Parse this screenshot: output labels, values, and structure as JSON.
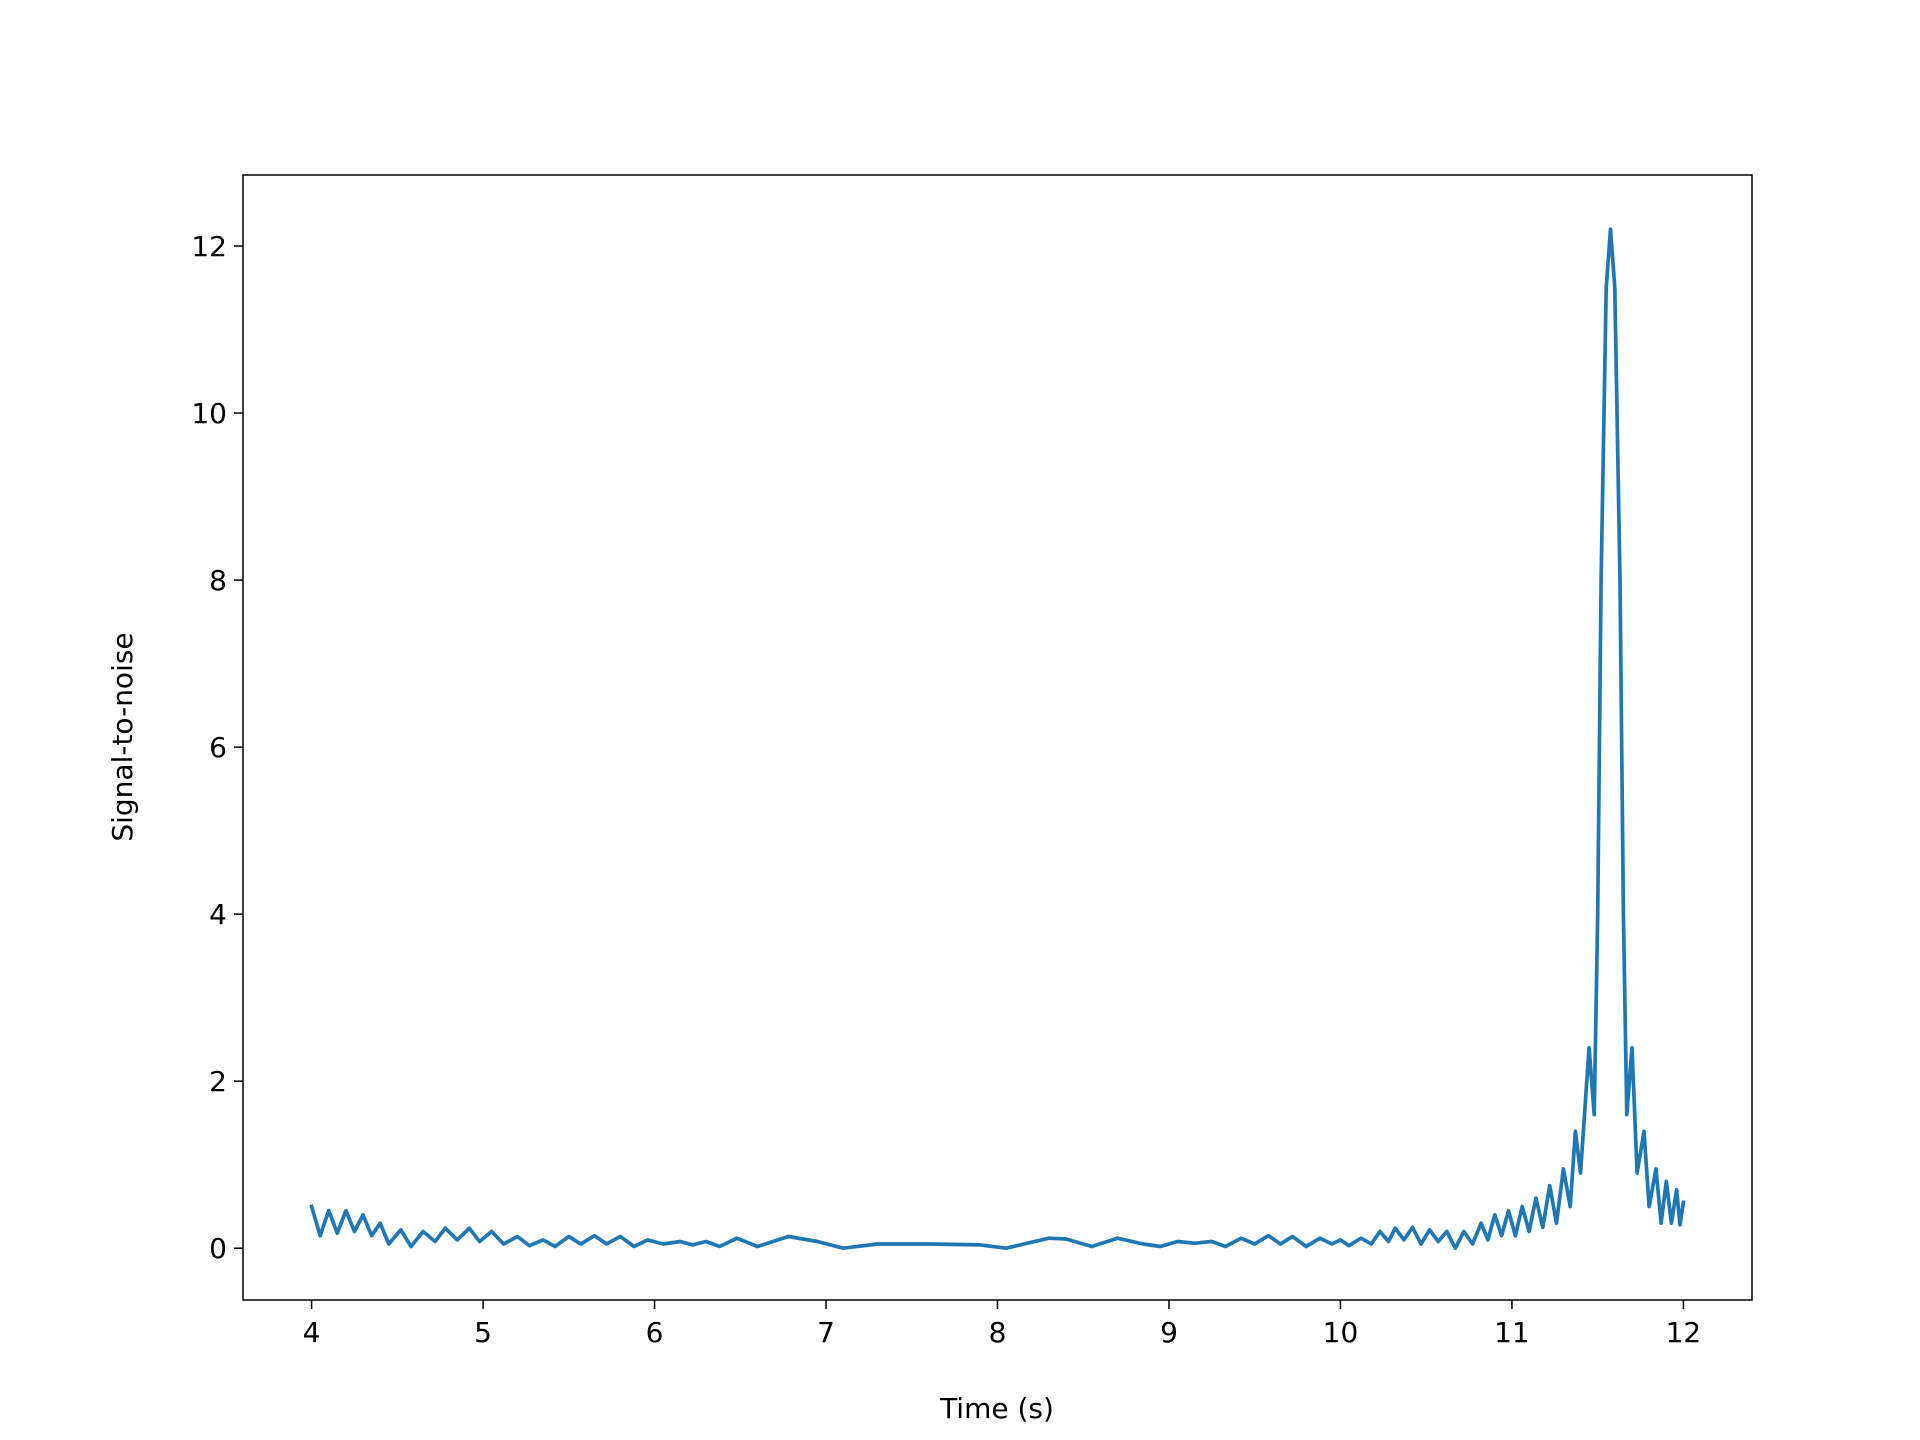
{
  "chart_data": {
    "type": "line",
    "xlabel": "Time (s)",
    "ylabel": "Signal-to-noise",
    "xlim": [
      3.6,
      12.4
    ],
    "xticks": [
      4,
      5,
      6,
      7,
      8,
      9,
      10,
      11,
      12
    ],
    "ylim": [
      -0.62,
      12.85
    ],
    "yticks": [
      0,
      2,
      4,
      6,
      8,
      10,
      12
    ],
    "series": [
      {
        "color": "#1f77b4",
        "x": [
          4.0,
          4.05,
          4.1,
          4.15,
          4.2,
          4.25,
          4.3,
          4.35,
          4.4,
          4.45,
          4.52,
          4.58,
          4.65,
          4.72,
          4.78,
          4.85,
          4.92,
          4.98,
          5.05,
          5.12,
          5.2,
          5.27,
          5.35,
          5.42,
          5.5,
          5.57,
          5.65,
          5.72,
          5.8,
          5.88,
          5.96,
          6.05,
          6.15,
          6.22,
          6.3,
          6.38,
          6.48,
          6.6,
          6.78,
          6.95,
          7.1,
          7.3,
          7.6,
          7.9,
          8.05,
          8.3,
          8.4,
          8.55,
          8.7,
          8.85,
          8.95,
          9.05,
          9.15,
          9.25,
          9.33,
          9.42,
          9.5,
          9.58,
          9.65,
          9.72,
          9.8,
          9.88,
          9.95,
          10.0,
          10.05,
          10.12,
          10.18,
          10.23,
          10.28,
          10.32,
          10.37,
          10.42,
          10.47,
          10.52,
          10.57,
          10.62,
          10.67,
          10.72,
          10.77,
          10.82,
          10.86,
          10.9,
          10.94,
          10.98,
          11.02,
          11.06,
          11.1,
          11.14,
          11.18,
          11.22,
          11.26,
          11.3,
          11.34,
          11.37,
          11.4,
          11.45,
          11.48,
          11.5,
          11.52,
          11.55,
          11.575,
          11.6,
          11.63,
          11.65,
          11.67,
          11.7,
          11.73,
          11.77,
          11.8,
          11.84,
          11.87,
          11.9,
          11.93,
          11.96,
          11.98,
          12.0
        ],
        "values": [
          0.5,
          0.15,
          0.45,
          0.18,
          0.45,
          0.2,
          0.4,
          0.15,
          0.3,
          0.05,
          0.22,
          0.02,
          0.2,
          0.08,
          0.24,
          0.1,
          0.24,
          0.08,
          0.2,
          0.05,
          0.14,
          0.03,
          0.1,
          0.02,
          0.14,
          0.05,
          0.15,
          0.05,
          0.14,
          0.02,
          0.1,
          0.05,
          0.08,
          0.04,
          0.08,
          0.02,
          0.12,
          0.02,
          0.14,
          0.08,
          0.0,
          0.05,
          0.05,
          0.04,
          0.0,
          0.12,
          0.11,
          0.02,
          0.12,
          0.05,
          0.02,
          0.08,
          0.06,
          0.08,
          0.02,
          0.12,
          0.05,
          0.15,
          0.05,
          0.14,
          0.02,
          0.12,
          0.05,
          0.1,
          0.03,
          0.12,
          0.05,
          0.2,
          0.08,
          0.24,
          0.1,
          0.25,
          0.05,
          0.22,
          0.08,
          0.2,
          0.0,
          0.2,
          0.05,
          0.3,
          0.1,
          0.4,
          0.15,
          0.45,
          0.15,
          0.5,
          0.2,
          0.6,
          0.25,
          0.75,
          0.3,
          0.95,
          0.5,
          1.4,
          0.9,
          2.4,
          1.6,
          4.0,
          8.0,
          11.5,
          12.2,
          11.5,
          8.0,
          4.0,
          1.6,
          2.4,
          0.9,
          1.4,
          0.5,
          0.95,
          0.3,
          0.8,
          0.3,
          0.7,
          0.28,
          0.55
        ]
      }
    ]
  }
}
